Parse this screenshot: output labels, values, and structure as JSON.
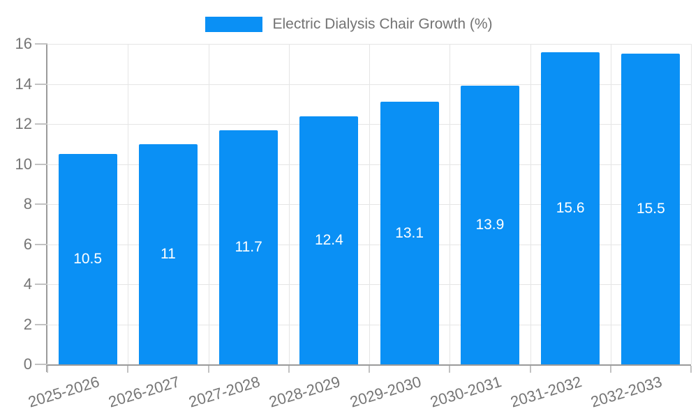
{
  "legend": {
    "label": "Electric Dialysis Chair Growth (%)"
  },
  "chart_data": {
    "type": "bar",
    "title": "Electric Dialysis Chair Growth (%)",
    "categories": [
      "2025-2026",
      "2026-2027",
      "2027-2028",
      "2028-2029",
      "2029-2030",
      "2030-2031",
      "2031-2032",
      "2032-2033"
    ],
    "values": [
      10.5,
      11,
      11.7,
      12.4,
      13.1,
      13.9,
      15.6,
      15.5
    ],
    "value_labels": [
      "10.5",
      "11",
      "11.7",
      "12.4",
      "13.1",
      "13.9",
      "15.6",
      "15.5"
    ],
    "xlabel": "",
    "ylabel": "",
    "ylim": [
      0,
      16
    ],
    "yticks": [
      0,
      2,
      4,
      6,
      8,
      10,
      12,
      14,
      16
    ],
    "grid": true,
    "legend_position": "top",
    "bar_color": "#0a90f5",
    "bar_label_color": "#ffffff",
    "axis_color": "#9a9a9a",
    "grid_color": "#e5e5e5",
    "tick_mark_color": "#c2c2c2",
    "tick_text_color": "#757575"
  }
}
